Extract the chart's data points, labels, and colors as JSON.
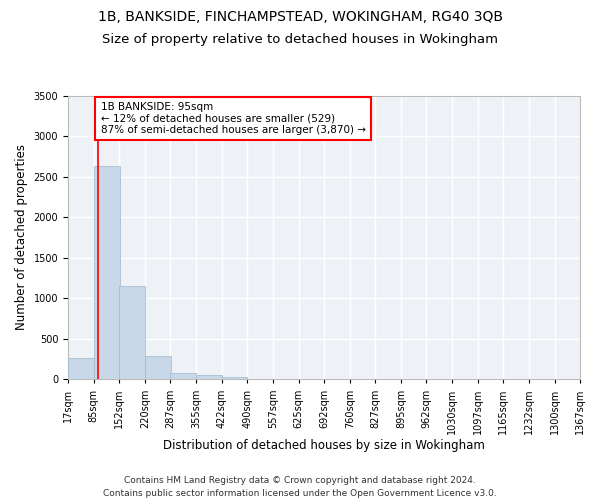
{
  "title": "1B, BANKSIDE, FINCHAMPSTEAD, WOKINGHAM, RG40 3QB",
  "subtitle": "Size of property relative to detached houses in Wokingham",
  "xlabel": "Distribution of detached houses by size in Wokingham",
  "ylabel": "Number of detached properties",
  "bar_color": "#c8d8e8",
  "bar_edgecolor": "#a0b8cc",
  "property_line_x": 95,
  "property_line_color": "red",
  "annotation_text": "1B BANKSIDE: 95sqm\n← 12% of detached houses are smaller (529)\n87% of semi-detached houses are larger (3,870) →",
  "annotation_box_color": "white",
  "annotation_box_edgecolor": "red",
  "bin_edges": [
    17,
    85,
    152,
    220,
    287,
    355,
    422,
    490,
    557,
    625,
    692,
    760,
    827,
    895,
    962,
    1030,
    1097,
    1165,
    1232,
    1300,
    1367
  ],
  "bin_labels": [
    "17sqm",
    "85sqm",
    "152sqm",
    "220sqm",
    "287sqm",
    "355sqm",
    "422sqm",
    "490sqm",
    "557sqm",
    "625sqm",
    "692sqm",
    "760sqm",
    "827sqm",
    "895sqm",
    "962sqm",
    "1030sqm",
    "1097sqm",
    "1165sqm",
    "1232sqm",
    "1300sqm",
    "1367sqm"
  ],
  "bar_heights": [
    270,
    2630,
    1150,
    290,
    80,
    55,
    35,
    0,
    0,
    0,
    0,
    0,
    0,
    0,
    0,
    0,
    0,
    0,
    0,
    0
  ],
  "ylim": [
    0,
    3500
  ],
  "yticks": [
    0,
    500,
    1000,
    1500,
    2000,
    2500,
    3000,
    3500
  ],
  "background_color": "#eef2f7",
  "grid_color": "#ffffff",
  "footnote": "Contains HM Land Registry data © Crown copyright and database right 2024.\nContains public sector information licensed under the Open Government Licence v3.0.",
  "title_fontsize": 10,
  "subtitle_fontsize": 9.5,
  "xlabel_fontsize": 8.5,
  "ylabel_fontsize": 8.5,
  "tick_fontsize": 7,
  "footnote_fontsize": 6.5,
  "annot_fontsize": 7.5
}
